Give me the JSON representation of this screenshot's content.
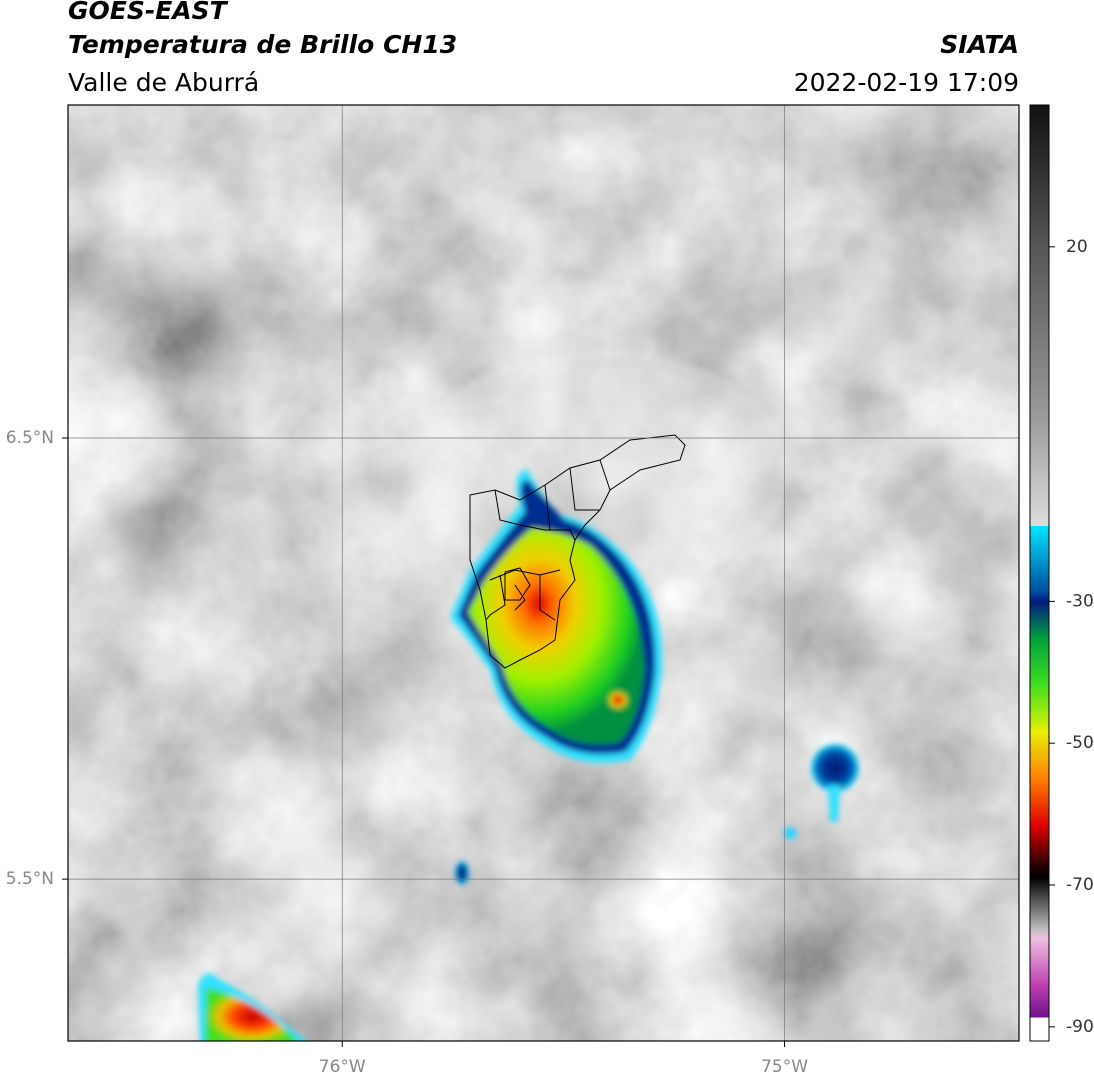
{
  "header": {
    "title": "GOES-EAST",
    "subtitle": "Temperatura de Brillo CH13",
    "region": "Valle de Aburrá",
    "source": "SIATA",
    "datetime": "2022-02-19 17:09"
  },
  "map": {
    "xlim": [
      -76.62,
      -74.47
    ],
    "ylim": [
      5.133,
      7.255
    ],
    "xticks": [
      {
        "value": -76,
        "label": "76°W"
      },
      {
        "value": -75,
        "label": "75°W"
      }
    ],
    "yticks": [
      {
        "value": 6.5,
        "label": "6.5°N"
      },
      {
        "value": 5.5,
        "label": "5.5°N"
      }
    ],
    "grid": true
  },
  "colorbar": {
    "lim": [
      -92,
      40
    ],
    "ticks": [
      20,
      -30,
      -50,
      -70,
      -90
    ]
  }
}
